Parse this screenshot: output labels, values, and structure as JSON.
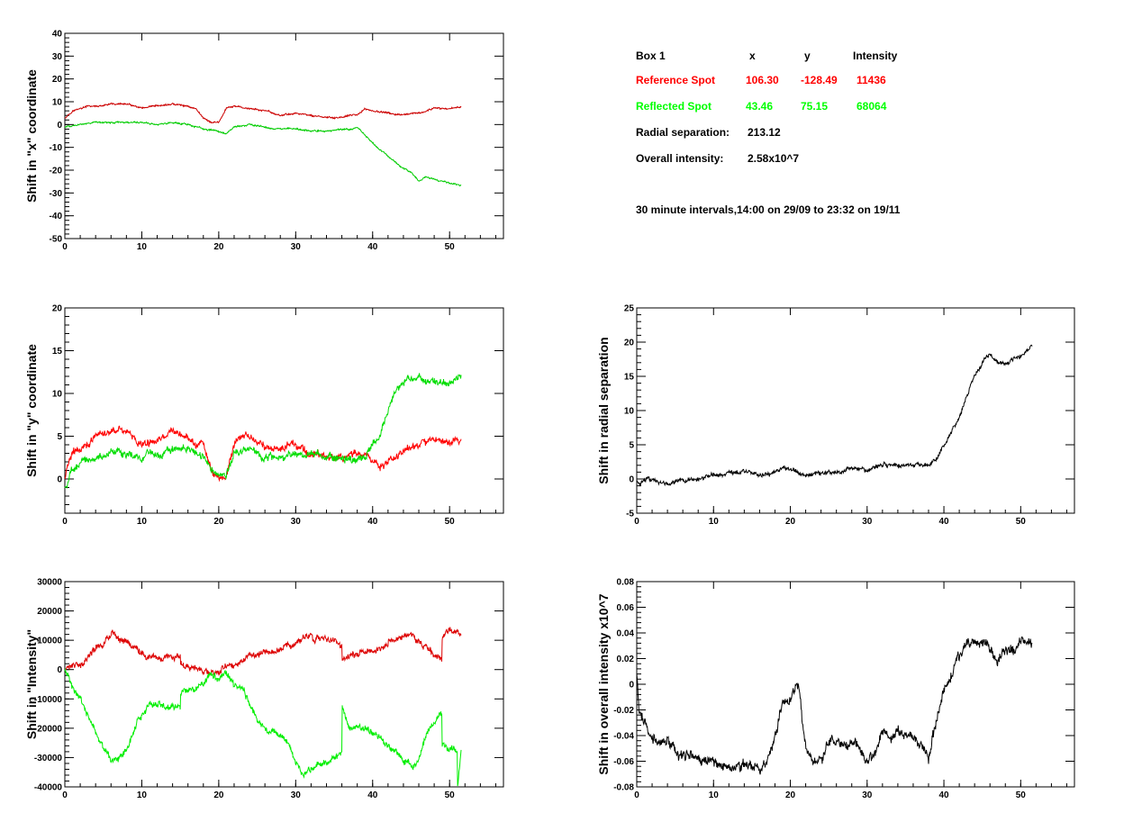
{
  "info": {
    "box_label": "Box 1",
    "col_x": "x",
    "col_y": "y",
    "col_intensity": "Intensity",
    "reference": {
      "label": "Reference Spot",
      "x": "106.30",
      "y": "-128.49",
      "intensity": "11436",
      "color": "#ff0000"
    },
    "reflected": {
      "label": "Reflected Spot",
      "x": "43.46",
      "y": "75.15",
      "intensity": "68064",
      "color": "#00ff00"
    },
    "radial_label": "Radial separation:",
    "radial_value": "213.12",
    "overall_label": "Overall intensity:",
    "overall_value": "2.58x10^7",
    "interval_note": "30 minute intervals,14:00 on 29/09 to 23:32 on 19/11"
  },
  "chart_data": [
    {
      "type": "line",
      "ylabel": "Shift in \"x\" coordinate",
      "xlim": [
        0,
        57
      ],
      "ylim": [
        -50,
        40
      ],
      "xticks": [
        0,
        10,
        20,
        30,
        40,
        50
      ],
      "yticks": [
        -50,
        -40,
        -30,
        -20,
        -10,
        0,
        10,
        20,
        30,
        40
      ],
      "noise": 0.5,
      "series": [
        {
          "color": "#cc0000",
          "x": [
            0,
            1,
            3,
            5,
            6,
            8,
            10,
            12,
            14,
            16,
            17,
            18,
            19,
            20,
            21,
            22,
            24,
            26,
            28,
            30,
            32,
            34,
            36,
            37,
            38,
            39,
            40,
            42,
            44,
            46,
            48,
            50,
            51.5
          ],
          "y": [
            3,
            6,
            8,
            8,
            9,
            9,
            7,
            8,
            9,
            8,
            7,
            3,
            1,
            1,
            7,
            8,
            7,
            6,
            4,
            5,
            4,
            3,
            3,
            4,
            4,
            7,
            6,
            5,
            4,
            5,
            7,
            7,
            8
          ]
        },
        {
          "color": "#00cc00",
          "x": [
            0,
            2,
            4,
            6,
            8,
            10,
            12,
            14,
            16,
            18,
            20,
            21,
            22,
            24,
            26,
            28,
            30,
            32,
            34,
            36,
            37,
            38,
            40,
            42,
            44,
            45,
            46,
            47,
            48,
            50,
            51.5
          ],
          "y": [
            -1,
            0,
            1,
            1,
            1,
            1,
            0,
            1,
            0,
            -2,
            -3,
            -4,
            -1,
            0,
            -1,
            -2,
            -2,
            -3,
            -3,
            -2,
            -2,
            -1,
            -8,
            -14,
            -19,
            -21,
            -25,
            -23,
            -24,
            -26,
            -27
          ]
        }
      ]
    },
    {
      "type": "line",
      "ylabel": "Shift in \"y\" coordinate",
      "xlim": [
        0,
        57
      ],
      "ylim": [
        -4,
        20
      ],
      "xticks": [
        0,
        10,
        20,
        30,
        40,
        50
      ],
      "yticks": [
        0,
        5,
        10,
        15,
        20
      ],
      "noise": 0.6,
      "series": [
        {
          "color": "#ff0000",
          "x": [
            0,
            0.5,
            1,
            2,
            3,
            4,
            6,
            7,
            8,
            10,
            12,
            14,
            16,
            17,
            18,
            19,
            20,
            21,
            22,
            23,
            24,
            26,
            27,
            28,
            29,
            30,
            32,
            34,
            36,
            38,
            39,
            40,
            41,
            42,
            44,
            46,
            48,
            50,
            51.5
          ],
          "y": [
            0,
            2,
            3,
            3.5,
            4,
            5,
            5.5,
            6,
            5.5,
            4,
            4.5,
            5.5,
            5,
            4,
            4,
            1,
            0,
            0,
            4,
            5,
            5,
            4,
            3,
            3.5,
            4,
            4,
            3,
            2.5,
            2.5,
            3,
            3,
            2,
            1.5,
            2,
            3.5,
            4,
            4.5,
            4.5,
            4.5
          ]
        },
        {
          "color": "#00dd00",
          "x": [
            0,
            1,
            2,
            4,
            6,
            8,
            10,
            12,
            14,
            16,
            18,
            19,
            20,
            21,
            22,
            24,
            26,
            28,
            30,
            32,
            34,
            36,
            37,
            38,
            39,
            40,
            41,
            42,
            43,
            44,
            45,
            46,
            47,
            48,
            50,
            51.5
          ],
          "y": [
            -1,
            1,
            2,
            2.5,
            3,
            3,
            2.5,
            3,
            3.5,
            3.5,
            2.5,
            1,
            0.5,
            0.5,
            3,
            3.5,
            2.5,
            2.5,
            3,
            3,
            2.5,
            2.5,
            2.5,
            2.5,
            3,
            4,
            5,
            8,
            10.5,
            11.5,
            12,
            12.2,
            11.2,
            11.2,
            11.5,
            12
          ]
        }
      ]
    },
    {
      "type": "line",
      "ylabel": "Shift in \"Intensity\"",
      "xlim": [
        0,
        57
      ],
      "ylim": [
        -40000,
        30000
      ],
      "xticks": [
        0,
        10,
        20,
        30,
        40,
        50
      ],
      "yticks": [
        -40000,
        -30000,
        -20000,
        -10000,
        0,
        10000,
        20000,
        30000
      ],
      "noise": 1600,
      "series": [
        {
          "color": "#dd0000",
          "x": [
            0,
            2,
            4,
            6,
            7,
            8,
            10,
            12,
            14,
            15,
            15.01,
            17,
            19,
            20,
            21,
            22,
            23,
            24,
            26,
            28,
            30,
            31,
            32,
            34,
            36,
            36.01,
            38,
            40,
            42,
            42.01,
            44,
            45,
            46,
            48,
            49,
            49.01,
            50,
            51.5
          ],
          "y": [
            0,
            2000,
            7000,
            12000,
            11000,
            10000,
            6000,
            4000,
            4000,
            4000,
            1000,
            0,
            -1000,
            0,
            2000,
            1000,
            3000,
            5000,
            6000,
            7000,
            9000,
            11000,
            11000,
            10000,
            9000,
            4000,
            6000,
            7000,
            8000,
            10000,
            11000,
            12000,
            10000,
            5000,
            4000,
            11000,
            13000,
            12000
          ]
        },
        {
          "color": "#00ee00",
          "x": [
            0,
            0.5,
            1,
            2,
            3,
            4,
            5,
            6,
            7,
            8,
            9,
            10,
            11,
            12,
            14,
            15,
            15.01,
            17,
            18,
            19,
            20,
            21,
            22,
            23,
            24,
            25,
            26,
            27,
            28,
            29,
            30,
            31,
            32,
            34,
            36,
            36.01,
            37,
            38,
            40,
            42,
            43,
            44,
            45,
            46,
            47,
            48,
            49,
            49.01,
            50,
            51,
            51.01,
            51.5
          ],
          "y": [
            0,
            -3000,
            -7000,
            -10000,
            -16000,
            -22000,
            -27000,
            -30000,
            -30000,
            -27000,
            -21000,
            -15000,
            -12000,
            -12000,
            -13000,
            -13000,
            -8000,
            -6000,
            -4000,
            -2000,
            -3000,
            0,
            -5000,
            -6000,
            -12000,
            -17000,
            -20000,
            -20000,
            -22000,
            -25000,
            -31000,
            -35000,
            -34000,
            -32000,
            -29000,
            -13000,
            -19000,
            -20000,
            -22000,
            -26000,
            -28000,
            -31000,
            -33000,
            -30000,
            -22000,
            -18000,
            -14000,
            -25000,
            -27000,
            -27000,
            -40000,
            -27000
          ]
        }
      ]
    },
    {
      "type": "line",
      "ylabel": "Shift in radial separation",
      "xlim": [
        0,
        57
      ],
      "ylim": [
        -5,
        25
      ],
      "xticks": [
        0,
        10,
        20,
        30,
        40,
        50
      ],
      "yticks": [
        -5,
        0,
        5,
        10,
        15,
        20,
        25
      ],
      "noise": 0.45,
      "series": [
        {
          "color": "#000000",
          "x": [
            0,
            2,
            4,
            6,
            8,
            10,
            12,
            14,
            16,
            18,
            19,
            20,
            21,
            22,
            24,
            26,
            28,
            30,
            32,
            34,
            36,
            37,
            38,
            39,
            40,
            41,
            42,
            43,
            44,
            45,
            46,
            47,
            48,
            50,
            51.5
          ],
          "y": [
            -0.5,
            0,
            -0.5,
            0,
            0,
            0.5,
            1,
            1,
            0.5,
            1,
            1.5,
            1.5,
            1,
            0.5,
            1,
            1,
            1.5,
            1.5,
            2,
            2,
            2,
            2,
            2,
            3,
            5,
            7,
            9,
            12,
            15,
            17,
            18,
            17,
            17,
            18,
            19.5
          ]
        }
      ]
    },
    {
      "type": "line",
      "ylabel": "Shift in overall intensity x10^7",
      "xlim": [
        0,
        57
      ],
      "ylim": [
        -0.08,
        0.08
      ],
      "xticks": [
        0,
        10,
        20,
        30,
        40,
        50
      ],
      "yticks": [
        -0.08,
        -0.06,
        -0.04,
        -0.02,
        0,
        0.02,
        0.04,
        0.06,
        0.08
      ],
      "noise": 0.006,
      "series": [
        {
          "color": "#000000",
          "x": [
            0,
            0.3,
            1,
            2,
            4,
            6,
            8,
            10,
            12,
            14,
            16,
            17,
            18,
            19,
            20,
            21,
            22,
            23,
            24,
            25,
            26,
            28,
            29,
            30,
            31,
            32,
            34,
            36,
            37,
            38,
            39,
            40,
            41,
            42,
            43,
            44,
            45,
            46,
            47,
            48,
            49,
            50,
            51.5
          ],
          "y": [
            0.01,
            -0.02,
            -0.03,
            -0.04,
            -0.045,
            -0.055,
            -0.058,
            -0.06,
            -0.062,
            -0.065,
            -0.065,
            -0.062,
            -0.04,
            -0.015,
            -0.01,
            0,
            -0.05,
            -0.065,
            -0.055,
            -0.045,
            -0.045,
            -0.045,
            -0.05,
            -0.062,
            -0.055,
            -0.04,
            -0.04,
            -0.04,
            -0.05,
            -0.055,
            -0.03,
            -0.005,
            0.01,
            0.02,
            0.03,
            0.035,
            0.03,
            0.025,
            0.02,
            0.025,
            0.025,
            0.03,
            0.03
          ]
        }
      ]
    }
  ]
}
